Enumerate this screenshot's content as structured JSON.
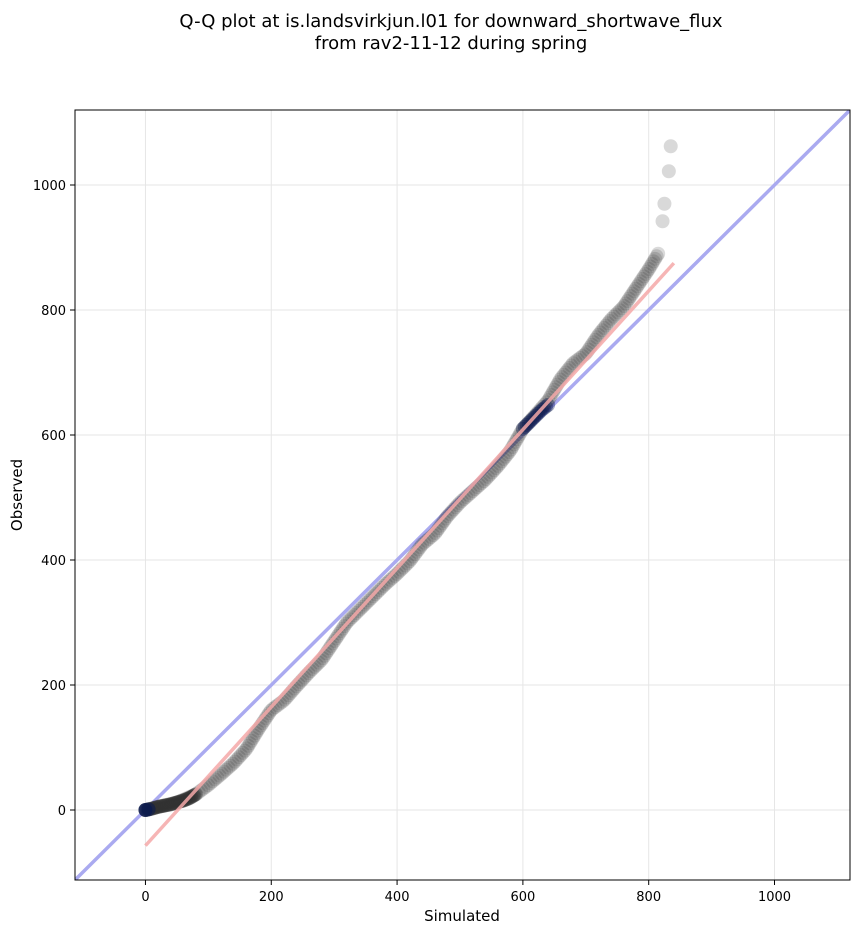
{
  "chart_data": {
    "type": "scatter",
    "title": [
      "Q-Q plot at is.landsvirkjun.l01 for downward_shortwave_flux",
      "from rav2-11-12 during spring"
    ],
    "xlabel": "Simulated",
    "ylabel": "Observed",
    "xlim": [
      -112,
      1120
    ],
    "ylim": [
      -112,
      1120
    ],
    "xticks": [
      0,
      200,
      400,
      600,
      800,
      1000
    ],
    "yticks": [
      0,
      200,
      400,
      600,
      800,
      1000
    ],
    "grid": true,
    "identity_line": {
      "color": "#aaaaf0",
      "from": -112,
      "to": 1120
    },
    "fit_line": {
      "color": "#f5a8a8",
      "x": [
        0,
        840
      ],
      "y": [
        -57,
        875
      ]
    },
    "point_color": "#333333",
    "highlight_color": "#0b1a4f",
    "quantile_knots": [
      [
        0,
        0
      ],
      [
        20,
        5
      ],
      [
        50,
        12
      ],
      [
        80,
        25
      ],
      [
        100,
        40
      ],
      [
        120,
        57
      ],
      [
        140,
        75
      ],
      [
        160,
        97
      ],
      [
        180,
        130
      ],
      [
        200,
        160
      ],
      [
        220,
        175
      ],
      [
        240,
        198
      ],
      [
        260,
        220
      ],
      [
        280,
        240
      ],
      [
        300,
        270
      ],
      [
        320,
        300
      ],
      [
        340,
        320
      ],
      [
        360,
        340
      ],
      [
        380,
        360
      ],
      [
        400,
        378
      ],
      [
        420,
        398
      ],
      [
        440,
        425
      ],
      [
        460,
        442
      ],
      [
        480,
        470
      ],
      [
        500,
        492
      ],
      [
        520,
        510
      ],
      [
        540,
        528
      ],
      [
        560,
        550
      ],
      [
        580,
        575
      ],
      [
        600,
        610
      ],
      [
        620,
        632
      ],
      [
        640,
        655
      ],
      [
        660,
        690
      ],
      [
        680,
        715
      ],
      [
        700,
        730
      ],
      [
        720,
        760
      ],
      [
        740,
        785
      ],
      [
        760,
        805
      ],
      [
        780,
        835
      ],
      [
        800,
        865
      ],
      [
        815,
        890
      ]
    ],
    "dense_tail_knots": [
      [
        0,
        0
      ],
      [
        5,
        1
      ],
      [
        10,
        2
      ],
      [
        20,
        5
      ],
      [
        30,
        7
      ],
      [
        40,
        9
      ],
      [
        50,
        12
      ],
      [
        60,
        15
      ],
      [
        70,
        19
      ],
      [
        80,
        25
      ]
    ],
    "highlight_knots": [
      [
        600,
        610
      ],
      [
        615,
        625
      ],
      [
        630,
        640
      ],
      [
        640,
        648
      ]
    ],
    "outliers": [
      [
        822,
        942
      ],
      [
        825,
        970
      ],
      [
        832,
        1022
      ],
      [
        835,
        1062
      ]
    ]
  }
}
